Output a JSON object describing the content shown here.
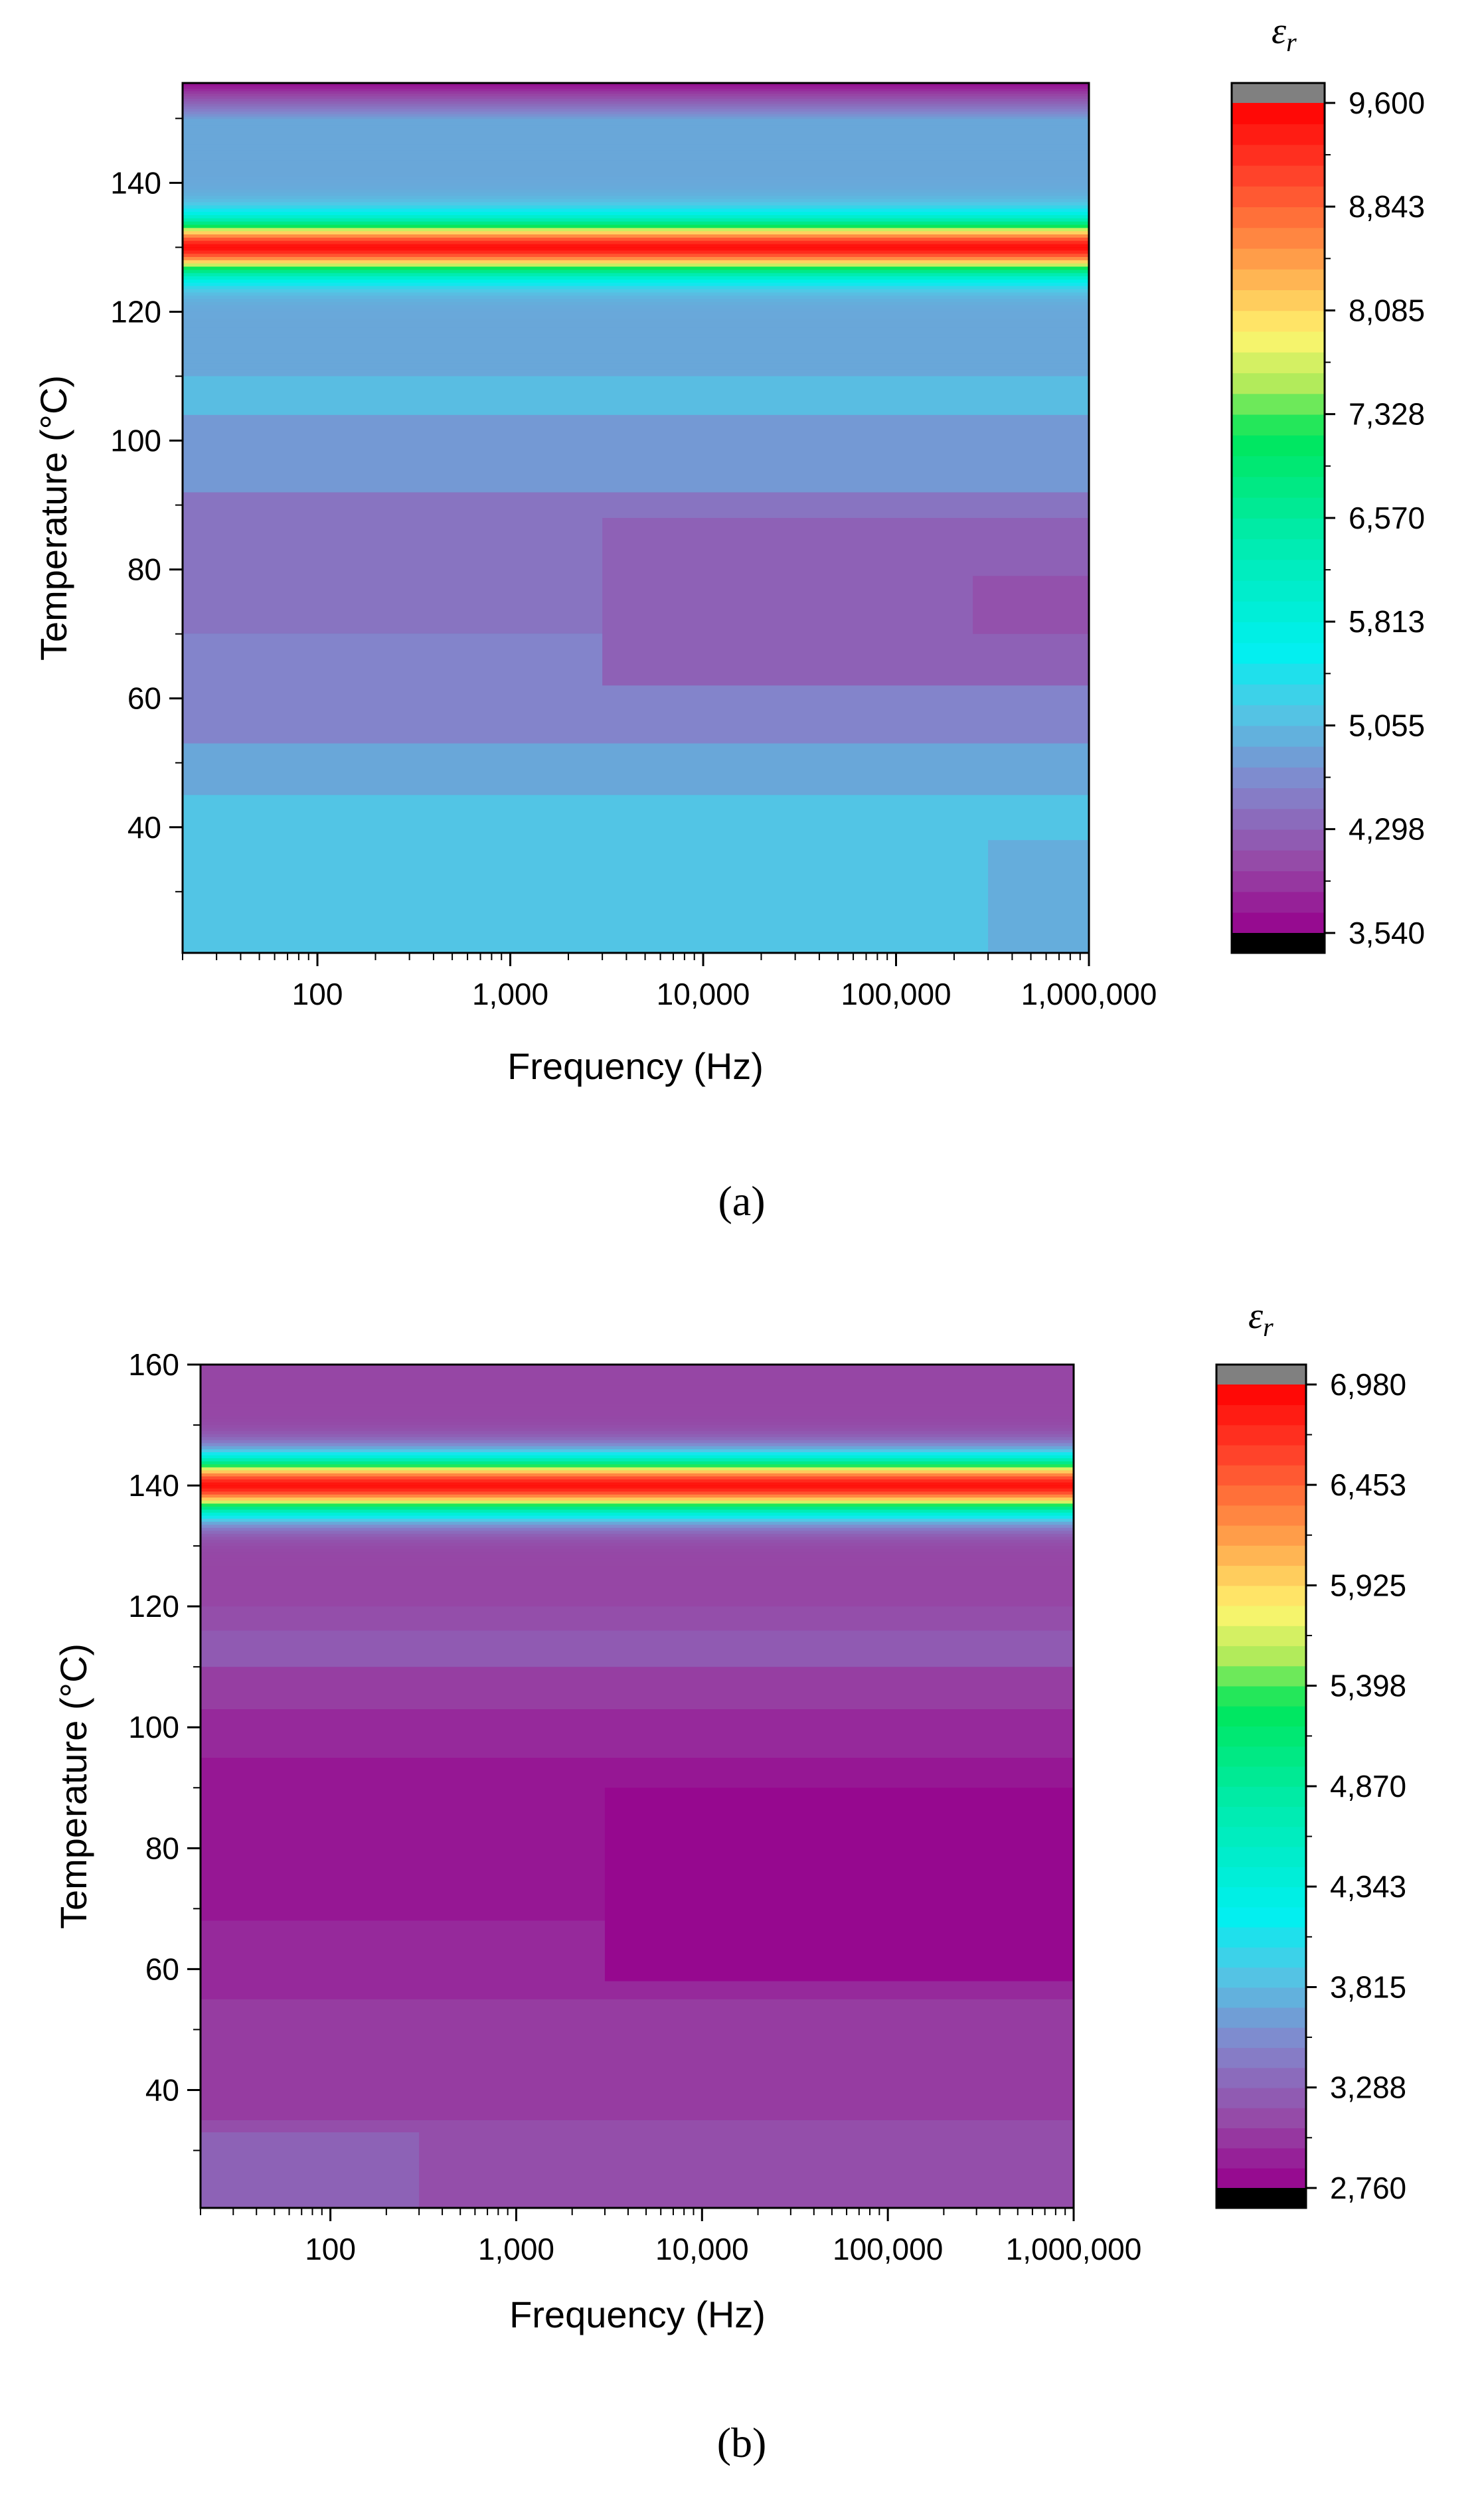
{
  "chart_data": [
    {
      "type": "heatmap",
      "panel_label": "(a)",
      "xlabel": "Frequency (Hz)",
      "ylabel": "Temperature (°C)",
      "x_scale": "log",
      "xlim": [
        20,
        1000000
      ],
      "ylim": [
        20.5,
        155.5
      ],
      "xticks": [
        {
          "value": 100,
          "label": "100"
        },
        {
          "value": 1000,
          "label": "1,000"
        },
        {
          "value": 10000,
          "label": "10,000"
        },
        {
          "value": 100000,
          "label": "100,000"
        },
        {
          "value": 1000000,
          "label": "1,000,000"
        }
      ],
      "yticks": [
        {
          "value": 40,
          "label": "40"
        },
        {
          "value": 60,
          "label": "60"
        },
        {
          "value": 80,
          "label": "80"
        },
        {
          "value": 100,
          "label": "100"
        },
        {
          "value": 120,
          "label": "120"
        },
        {
          "value": 140,
          "label": "140"
        }
      ],
      "colorbar": {
        "title_symbol": "ε",
        "title_subscript": "r",
        "min": 3540,
        "max": 9600,
        "tick_values": [
          3540,
          4298,
          5055,
          5813,
          6570,
          7328,
          8085,
          8843,
          9600
        ],
        "tick_labels": [
          "3,540",
          "4,298",
          "5,055",
          "5,813",
          "6,570",
          "7,328",
          "8,085",
          "8,843",
          "9,600"
        ]
      },
      "peak": {
        "temperature": 130,
        "value": 9500,
        "width": 4.2
      },
      "regions": [
        {
          "x1": 20,
          "x2": 1000000,
          "y1": 20.5,
          "y2": 45,
          "value": 5150
        },
        {
          "x1": 300000,
          "x2": 1000000,
          "y1": 20.5,
          "y2": 38,
          "value": 4950
        },
        {
          "x1": 20,
          "x2": 1000000,
          "y1": 45,
          "y2": 53,
          "value": 4900
        },
        {
          "x1": 20,
          "x2": 1000000,
          "y1": 53,
          "y2": 70,
          "value": 4600
        },
        {
          "x1": 20,
          "x2": 1000000,
          "y1": 70,
          "y2": 92,
          "value": 4450
        },
        {
          "x1": 3000,
          "x2": 1000000,
          "y1": 62,
          "y2": 88,
          "value": 4280
        },
        {
          "x1": 250000,
          "x2": 1000000,
          "y1": 70,
          "y2": 79,
          "value": 4130
        },
        {
          "x1": 20,
          "x2": 1000000,
          "y1": 92,
          "y2": 104,
          "value": 4780
        },
        {
          "x1": 20,
          "x2": 1000000,
          "y1": 104,
          "y2": 112,
          "value": 5080
        }
      ]
    },
    {
      "type": "heatmap",
      "panel_label": "(b)",
      "xlabel": "Frequency (Hz)",
      "ylabel": "Temperature (°C)",
      "x_scale": "log",
      "xlim": [
        20,
        1000000
      ],
      "ylim": [
        20.5,
        160
      ],
      "xticks": [
        {
          "value": 100,
          "label": "100"
        },
        {
          "value": 1000,
          "label": "1,000"
        },
        {
          "value": 10000,
          "label": "10,000"
        },
        {
          "value": 100000,
          "label": "100,000"
        },
        {
          "value": 1000000,
          "label": "1,000,000"
        }
      ],
      "yticks": [
        {
          "value": 40,
          "label": "40"
        },
        {
          "value": 60,
          "label": "60"
        },
        {
          "value": 80,
          "label": "80"
        },
        {
          "value": 100,
          "label": "100"
        },
        {
          "value": 120,
          "label": "120"
        },
        {
          "value": 140,
          "label": "140"
        },
        {
          "value": 160,
          "label": "160"
        }
      ],
      "colorbar": {
        "title_symbol": "ε",
        "title_subscript": "r",
        "min": 2760,
        "max": 6980,
        "tick_values": [
          2760,
          3288,
          3815,
          4343,
          4870,
          5398,
          5925,
          6453,
          6980
        ],
        "tick_labels": [
          "2,760",
          "3,288",
          "3,815",
          "4,343",
          "4,870",
          "5,398",
          "5,925",
          "6,453",
          "6,980"
        ]
      },
      "peak": {
        "temperature": 140,
        "value": 6900,
        "width": 4.8
      },
      "regions": [
        {
          "x1": 20,
          "x2": 1000000,
          "y1": 20.5,
          "y2": 35,
          "value": 3150
        },
        {
          "x1": 20,
          "x2": 300,
          "y1": 20.5,
          "y2": 33,
          "value": 3280
        },
        {
          "x1": 20,
          "x2": 1000000,
          "y1": 35,
          "y2": 55,
          "value": 3050
        },
        {
          "x1": 20,
          "x2": 1000000,
          "y1": 55,
          "y2": 68,
          "value": 2960
        },
        {
          "x1": 20,
          "x2": 1000000,
          "y1": 68,
          "y2": 95,
          "value": 2870
        },
        {
          "x1": 3000,
          "x2": 1000000,
          "y1": 58,
          "y2": 90,
          "value": 2800
        },
        {
          "x1": 20,
          "x2": 1000000,
          "y1": 95,
          "y2": 103,
          "value": 2960
        },
        {
          "x1": 20,
          "x2": 1000000,
          "y1": 103,
          "y2": 110,
          "value": 3060
        },
        {
          "x1": 20,
          "x2": 1000000,
          "y1": 110,
          "y2": 116,
          "value": 3230
        }
      ]
    }
  ]
}
